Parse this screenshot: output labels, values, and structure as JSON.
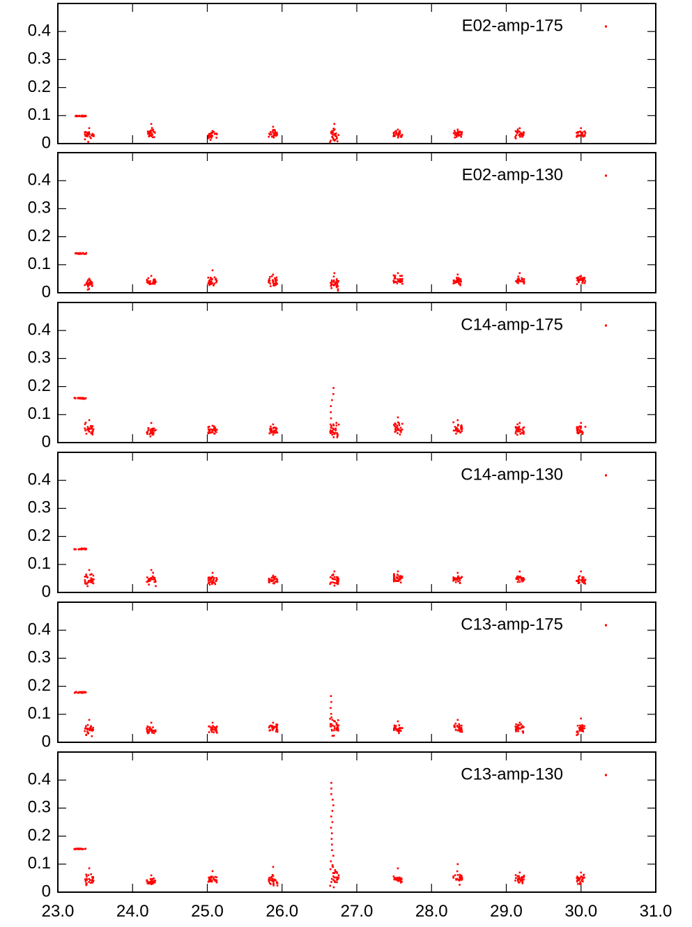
{
  "chart_data": {
    "type": "scatter",
    "xlim": [
      23.0,
      31.0
    ],
    "ylim": [
      0,
      0.5
    ],
    "x_ticks": [
      "23.0",
      "24.0",
      "25.0",
      "26.0",
      "27.0",
      "28.0",
      "29.0",
      "30.0",
      "31.0"
    ],
    "y_ticks": [
      "0",
      "0.1",
      "0.2",
      "0.3",
      "0.4"
    ],
    "marker_color": "#ff0000",
    "grid": false,
    "legend_position": "top-right",
    "panels": [
      {
        "name": "E02-amp-175",
        "clusters": [
          {
            "x": 23.3,
            "y": 0.098,
            "spread": 0.003,
            "max": 0.1
          },
          {
            "x": 23.42,
            "y": 0.03,
            "spread": 0.015,
            "max": 0.055
          },
          {
            "x": 24.25,
            "y": 0.035,
            "spread": 0.015,
            "max": 0.07
          },
          {
            "x": 25.07,
            "y": 0.03,
            "spread": 0.012,
            "max": 0.045
          },
          {
            "x": 25.88,
            "y": 0.035,
            "spread": 0.015,
            "max": 0.06
          },
          {
            "x": 26.7,
            "y": 0.025,
            "spread": 0.02,
            "max": 0.07
          },
          {
            "x": 27.55,
            "y": 0.035,
            "spread": 0.01,
            "max": 0.05
          },
          {
            "x": 28.35,
            "y": 0.035,
            "spread": 0.012,
            "max": 0.05
          },
          {
            "x": 29.18,
            "y": 0.035,
            "spread": 0.012,
            "max": 0.055
          },
          {
            "x": 30.0,
            "y": 0.035,
            "spread": 0.012,
            "max": 0.055
          }
        ]
      },
      {
        "name": "E02-amp-130",
        "clusters": [
          {
            "x": 23.3,
            "y": 0.14,
            "spread": 0.003,
            "max": 0.145
          },
          {
            "x": 23.42,
            "y": 0.03,
            "spread": 0.012,
            "max": 0.05
          },
          {
            "x": 24.25,
            "y": 0.04,
            "spread": 0.012,
            "max": 0.06
          },
          {
            "x": 25.07,
            "y": 0.04,
            "spread": 0.015,
            "max": 0.08
          },
          {
            "x": 25.88,
            "y": 0.04,
            "spread": 0.015,
            "max": 0.065
          },
          {
            "x": 26.7,
            "y": 0.035,
            "spread": 0.02,
            "max": 0.07
          },
          {
            "x": 27.55,
            "y": 0.045,
            "spread": 0.012,
            "max": 0.07
          },
          {
            "x": 28.35,
            "y": 0.04,
            "spread": 0.012,
            "max": 0.065
          },
          {
            "x": 29.18,
            "y": 0.04,
            "spread": 0.012,
            "max": 0.07
          },
          {
            "x": 30.0,
            "y": 0.045,
            "spread": 0.012,
            "max": 0.06
          }
        ]
      },
      {
        "name": "C14-amp-175",
        "clusters": [
          {
            "x": 23.3,
            "y": 0.158,
            "spread": 0.003,
            "max": 0.162
          },
          {
            "x": 23.42,
            "y": 0.045,
            "spread": 0.015,
            "max": 0.08
          },
          {
            "x": 24.25,
            "y": 0.04,
            "spread": 0.015,
            "max": 0.07
          },
          {
            "x": 25.07,
            "y": 0.045,
            "spread": 0.012,
            "max": 0.06
          },
          {
            "x": 25.88,
            "y": 0.045,
            "spread": 0.012,
            "max": 0.065
          },
          {
            "x": 26.7,
            "y": 0.04,
            "spread": 0.025,
            "max": 0.195
          },
          {
            "x": 27.55,
            "y": 0.05,
            "spread": 0.015,
            "max": 0.09
          },
          {
            "x": 28.35,
            "y": 0.05,
            "spread": 0.015,
            "max": 0.08
          },
          {
            "x": 29.18,
            "y": 0.045,
            "spread": 0.015,
            "max": 0.07
          },
          {
            "x": 30.0,
            "y": 0.045,
            "spread": 0.012,
            "max": 0.07
          }
        ]
      },
      {
        "name": "C14-amp-130",
        "clusters": [
          {
            "x": 23.3,
            "y": 0.155,
            "spread": 0.003,
            "max": 0.16
          },
          {
            "x": 23.42,
            "y": 0.045,
            "spread": 0.015,
            "max": 0.08
          },
          {
            "x": 24.25,
            "y": 0.045,
            "spread": 0.015,
            "max": 0.08
          },
          {
            "x": 25.07,
            "y": 0.045,
            "spread": 0.012,
            "max": 0.07
          },
          {
            "x": 25.88,
            "y": 0.045,
            "spread": 0.012,
            "max": 0.06
          },
          {
            "x": 26.7,
            "y": 0.045,
            "spread": 0.018,
            "max": 0.075
          },
          {
            "x": 27.55,
            "y": 0.05,
            "spread": 0.012,
            "max": 0.075
          },
          {
            "x": 28.35,
            "y": 0.045,
            "spread": 0.012,
            "max": 0.07
          },
          {
            "x": 29.18,
            "y": 0.05,
            "spread": 0.012,
            "max": 0.075
          },
          {
            "x": 30.0,
            "y": 0.045,
            "spread": 0.012,
            "max": 0.075
          }
        ]
      },
      {
        "name": "C13-amp-175",
        "clusters": [
          {
            "x": 23.3,
            "y": 0.178,
            "spread": 0.003,
            "max": 0.183
          },
          {
            "x": 23.42,
            "y": 0.045,
            "spread": 0.015,
            "max": 0.08
          },
          {
            "x": 24.25,
            "y": 0.045,
            "spread": 0.012,
            "max": 0.07
          },
          {
            "x": 25.07,
            "y": 0.05,
            "spread": 0.012,
            "max": 0.07
          },
          {
            "x": 25.88,
            "y": 0.05,
            "spread": 0.012,
            "max": 0.07
          },
          {
            "x": 26.7,
            "y": 0.055,
            "spread": 0.025,
            "max": 0.165
          },
          {
            "x": 27.55,
            "y": 0.05,
            "spread": 0.012,
            "max": 0.075
          },
          {
            "x": 28.35,
            "y": 0.05,
            "spread": 0.012,
            "max": 0.08
          },
          {
            "x": 29.18,
            "y": 0.05,
            "spread": 0.012,
            "max": 0.07
          },
          {
            "x": 30.0,
            "y": 0.045,
            "spread": 0.015,
            "max": 0.085
          }
        ]
      },
      {
        "name": "C13-amp-130",
        "clusters": [
          {
            "x": 23.3,
            "y": 0.155,
            "spread": 0.003,
            "max": 0.16
          },
          {
            "x": 23.42,
            "y": 0.045,
            "spread": 0.015,
            "max": 0.085
          },
          {
            "x": 24.25,
            "y": 0.04,
            "spread": 0.01,
            "max": 0.06
          },
          {
            "x": 25.07,
            "y": 0.045,
            "spread": 0.012,
            "max": 0.075
          },
          {
            "x": 25.88,
            "y": 0.04,
            "spread": 0.015,
            "max": 0.09
          },
          {
            "x": 26.7,
            "y": 0.06,
            "spread": 0.03,
            "max": 0.39
          },
          {
            "x": 27.55,
            "y": 0.045,
            "spread": 0.012,
            "max": 0.085
          },
          {
            "x": 28.35,
            "y": 0.05,
            "spread": 0.015,
            "max": 0.1
          },
          {
            "x": 29.18,
            "y": 0.045,
            "spread": 0.012,
            "max": 0.07
          },
          {
            "x": 30.0,
            "y": 0.045,
            "spread": 0.015,
            "max": 0.07
          }
        ]
      }
    ]
  }
}
